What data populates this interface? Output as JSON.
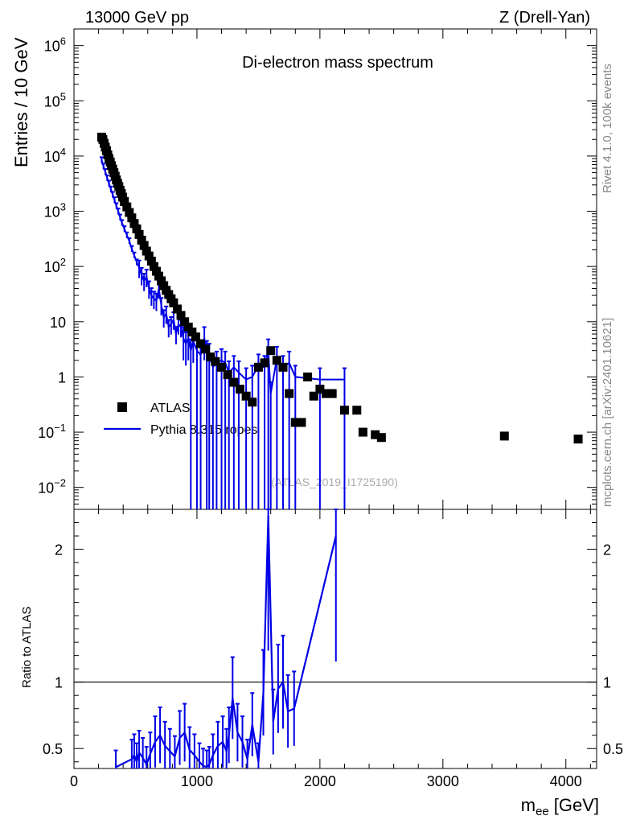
{
  "header": {
    "left": "13000 GeV pp",
    "right": "Z (Drell-Yan)"
  },
  "side_labels": {
    "rivet": "Rivet 4.1.0,  100k events",
    "mcplots": "mcplots.cern.ch [arXiv:2401.10621]"
  },
  "chart_data": {
    "type": "scatter",
    "title": "Di-electron mass spectrum",
    "watermark": "(ATLAS_2019_I1725190)",
    "xlabel": "m",
    "xlabel_sub": "ee",
    "xlabel_unit": "[GeV]",
    "ylabel": "Entries / 10 GeV",
    "ratio_ylabel": "Ratio to ATLAS",
    "xlim": [
      0,
      4250
    ],
    "ylim": [
      0.004,
      2000000
    ],
    "yscale": "log",
    "ratio_ylim": [
      0.35,
      2.3
    ],
    "x_ticks": [
      0,
      1000,
      2000,
      3000,
      4000
    ],
    "x_tick_labels": [
      "0",
      "1000",
      "2000",
      "3000",
      "4000"
    ],
    "y_ticks": [
      {
        "value": 1000000,
        "base": "10",
        "exp": "6"
      },
      {
        "value": 100000,
        "base": "10",
        "exp": "5"
      },
      {
        "value": 10000,
        "base": "10",
        "exp": "4"
      },
      {
        "value": 1000,
        "base": "10",
        "exp": "3"
      },
      {
        "value": 100,
        "base": "10",
        "exp": "2"
      },
      {
        "value": 10,
        "base": "10",
        "exp": ""
      },
      {
        "value": 1,
        "base": "1",
        "exp": ""
      },
      {
        "value": 0.1,
        "base": "10",
        "exp": "−1"
      },
      {
        "value": 0.01,
        "base": "10",
        "exp": "−2"
      }
    ],
    "ratio_ticks": [
      {
        "value": 0.5,
        "label": "0.5"
      },
      {
        "value": 1,
        "label": "1"
      },
      {
        "value": 2,
        "label": "2"
      }
    ],
    "legend_position": "middle-left",
    "series": [
      {
        "name": "ATLAS",
        "kind": "markers",
        "color": "#000000",
        "x": [
          225,
          235,
          245,
          255,
          265,
          275,
          285,
          295,
          305,
          315,
          325,
          335,
          345,
          355,
          365,
          375,
          385,
          395,
          410,
          430,
          450,
          470,
          490,
          510,
          530,
          550,
          570,
          590,
          610,
          630,
          650,
          670,
          690,
          710,
          730,
          750,
          770,
          790,
          810,
          840,
          870,
          900,
          930,
          960,
          990,
          1030,
          1070,
          1110,
          1150,
          1200,
          1250,
          1300,
          1350,
          1400,
          1450,
          1500,
          1550,
          1600,
          1650,
          1700,
          1750,
          1800,
          1850,
          1900,
          1950,
          2000,
          2050,
          2100,
          2200,
          2300,
          2350,
          2450,
          2500,
          3500,
          4100
        ],
        "values": [
          22000,
          20000,
          17000,
          14500,
          12500,
          10500,
          9000,
          7800,
          6700,
          5800,
          5000,
          4300,
          3700,
          3200,
          2800,
          2400,
          2100,
          1800,
          1500,
          1200,
          950,
          760,
          600,
          480,
          380,
          300,
          240,
          190,
          155,
          125,
          100,
          82,
          67,
          55,
          45,
          37,
          31,
          26,
          22,
          17,
          13,
          10,
          8,
          6.5,
          5.3,
          4,
          3.2,
          2.3,
          1.9,
          1.5,
          1.1,
          0.8,
          0.6,
          0.45,
          0.35,
          1.5,
          1.8,
          3,
          2,
          1.5,
          0.5,
          0.15,
          0.15,
          1,
          0.45,
          0.6,
          0.5,
          0.5,
          0.25,
          0.25,
          0.1,
          0.09,
          0.08,
          0.085,
          0.075
        ]
      },
      {
        "name": "Pythia 8.315 ropes",
        "kind": "line",
        "color": "#0000e6",
        "x": [
          225,
          240,
          255,
          270,
          285,
          300,
          315,
          330,
          345,
          360,
          375,
          390,
          410,
          430,
          450,
          470,
          490,
          510,
          530,
          550,
          570,
          590,
          610,
          630,
          650,
          670,
          690,
          710,
          730,
          750,
          770,
          790,
          810,
          830,
          850,
          870,
          890,
          910,
          930,
          950,
          970,
          1000,
          1030,
          1060,
          1080,
          1100,
          1130,
          1160,
          1200,
          1230,
          1260,
          1300,
          1340,
          1400,
          1450,
          1500,
          1550,
          1580,
          1600,
          1650,
          1700,
          1750,
          1800,
          2000,
          2200
        ],
        "values": [
          8500,
          6500,
          5200,
          4000,
          3200,
          2500,
          2000,
          1600,
          1250,
          1000,
          780,
          620,
          480,
          370,
          290,
          210,
          160,
          120,
          95,
          70,
          55,
          65,
          40,
          30,
          26,
          24,
          40,
          20,
          12,
          14,
          8,
          9,
          11,
          6,
          9,
          8,
          5,
          4,
          5,
          3,
          4.5,
          3,
          2.5,
          5,
          2.8,
          2.5,
          1.5,
          1.8,
          2,
          1.8,
          1.2,
          1.5,
          1.2,
          0.9,
          1,
          1.6,
          1.5,
          3,
          0.5,
          2.2,
          1.5,
          1.8,
          1,
          0.9,
          0.9
        ],
        "ratio_x": [
          340,
          470,
          490,
          510,
          530,
          560,
          590,
          620,
          660,
          700,
          740,
          780,
          820,
          860,
          900,
          940,
          980,
          1020,
          1050,
          1080,
          1100,
          1130,
          1170,
          1210,
          1240,
          1260,
          1290,
          1330,
          1370,
          1410,
          1450,
          1500,
          1540,
          1580,
          1620,
          1660,
          1700,
          1740,
          1790,
          2130
        ],
        "ratio_values": [
          0.36,
          0.42,
          0.45,
          0.4,
          0.47,
          0.43,
          0.38,
          0.46,
          0.55,
          0.6,
          0.52,
          0.48,
          0.44,
          0.58,
          0.62,
          0.49,
          0.45,
          0.4,
          0.37,
          0.36,
          0.38,
          0.45,
          0.52,
          0.55,
          0.48,
          0.6,
          0.88,
          0.62,
          0.55,
          0.42,
          0.68,
          0.4,
          0.92,
          2.25,
          0.7,
          0.95,
          1.0,
          0.78,
          0.8,
          2.1
        ]
      }
    ]
  }
}
